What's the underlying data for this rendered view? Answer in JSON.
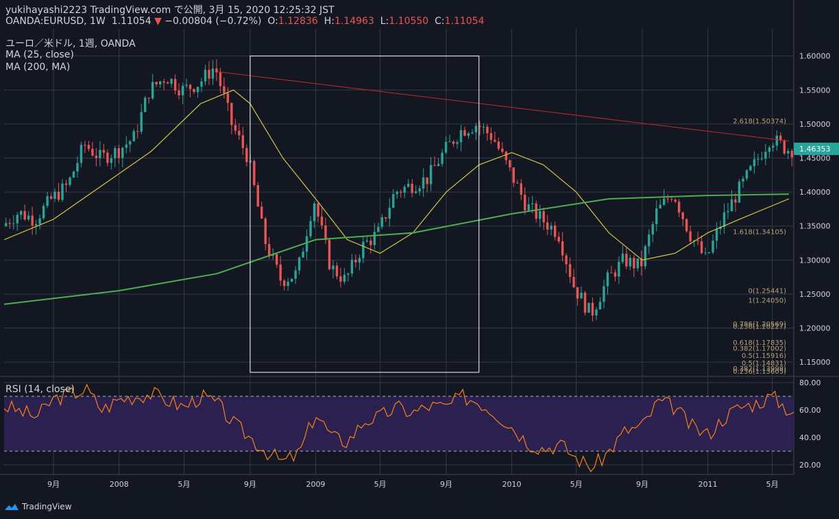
{
  "header": {
    "line1": "yukihayashi2223 TradingView.com で公開, 3月 15, 2020 12:25:32 JST",
    "symbol": "OANDA:EURUSD, 1W",
    "last": "1.11054",
    "arrow": "▼",
    "change": "−0.00804 (−0.72%)",
    "o_label": "O:",
    "o": "1.12836",
    "h_label": "H:",
    "h": "1.14963",
    "l_label": "L:",
    "l": "1.10550",
    "c_label": "C:",
    "c": "1.11054"
  },
  "legend": {
    "title": "ユーロ／米ドル, 1週, OANDA",
    "ma1": "MA (25, close)",
    "ma2": "MA (200, MA)",
    "rsi": "RSI (14, close)"
  },
  "brand": "TradingView",
  "colors": {
    "background": "#131722",
    "up": "#26a69a",
    "down": "#ef5350",
    "ma25": "#d8c83c",
    "ma200": "#4caf50",
    "trendline": "#c62828",
    "rsi_line": "#ff7f0e",
    "rsi_band": "#2a2150",
    "text": "#d1d4dc",
    "fib": "#b8a07a",
    "price_tag": "#26a69a"
  },
  "chart_data": [
    {
      "type": "candlestick",
      "title": "ユーロ／米ドル, 1週, OANDA",
      "y_ticks": [
        "1.60000",
        "1.55000",
        "1.50000",
        "1.45000",
        "1.40000",
        "1.35000",
        "1.30000",
        "1.25000",
        "1.20000",
        "1.15000"
      ],
      "ylim": [
        1.13,
        1.64
      ],
      "x_ticks": [
        "9月",
        "2008",
        "5月",
        "9月",
        "2009",
        "5月",
        "9月",
        "2010",
        "5月",
        "9月",
        "2011",
        "5月"
      ],
      "x_tick_dates": [
        "2007-09",
        "2008-01",
        "2008-05",
        "2008-09",
        "2009-01",
        "2009-05",
        "2009-09",
        "2010-01",
        "2010-05",
        "2010-09",
        "2011-01",
        "2011-05"
      ],
      "last_price_tag": "1.46353",
      "close_path": [
        [
          "2007-06",
          1.35
        ],
        [
          "2007-07",
          1.37
        ],
        [
          "2007-08",
          1.36
        ],
        [
          "2007-09",
          1.39
        ],
        [
          "2007-10",
          1.41
        ],
        [
          "2007-11",
          1.47
        ],
        [
          "2007-12",
          1.45
        ],
        [
          "2008-01",
          1.46
        ],
        [
          "2008-02",
          1.48
        ],
        [
          "2008-03",
          1.55
        ],
        [
          "2008-04",
          1.57
        ],
        [
          "2008-05",
          1.55
        ],
        [
          "2008-06",
          1.56
        ],
        [
          "2008-07",
          1.585
        ],
        [
          "2008-08",
          1.5
        ],
        [
          "2008-09",
          1.45
        ],
        [
          "2008-10",
          1.33
        ],
        [
          "2008-11",
          1.27
        ],
        [
          "2008-12",
          1.28
        ],
        [
          "2009-01",
          1.39
        ],
        [
          "2009-02",
          1.29
        ],
        [
          "2009-03",
          1.27
        ],
        [
          "2009-04",
          1.32
        ],
        [
          "2009-05",
          1.34
        ],
        [
          "2009-06",
          1.4
        ],
        [
          "2009-07",
          1.41
        ],
        [
          "2009-08",
          1.42
        ],
        [
          "2009-09",
          1.46
        ],
        [
          "2009-10",
          1.49
        ],
        [
          "2009-11",
          1.5
        ],
        [
          "2009-12",
          1.48
        ],
        [
          "2010-01",
          1.43
        ],
        [
          "2010-02",
          1.38
        ],
        [
          "2010-03",
          1.36
        ],
        [
          "2010-04",
          1.34
        ],
        [
          "2010-05",
          1.26
        ],
        [
          "2010-06",
          1.22
        ],
        [
          "2010-07",
          1.27
        ],
        [
          "2010-08",
          1.3
        ],
        [
          "2010-09",
          1.29
        ],
        [
          "2010-10",
          1.37
        ],
        [
          "2010-11",
          1.4
        ],
        [
          "2010-12",
          1.34
        ],
        [
          "2011-01",
          1.3
        ],
        [
          "2011-02",
          1.36
        ],
        [
          "2011-03",
          1.4
        ],
        [
          "2011-04",
          1.44
        ],
        [
          "2011-05",
          1.48
        ],
        [
          "2011-06",
          1.463
        ]
      ],
      "series": [
        {
          "name": "MA (25, close)",
          "points": [
            [
              "2007-06",
              1.33
            ],
            [
              "2007-09",
              1.36
            ],
            [
              "2007-12",
              1.41
            ],
            [
              "2008-03",
              1.46
            ],
            [
              "2008-06",
              1.53
            ],
            [
              "2008-08",
              1.55
            ],
            [
              "2008-09",
              1.53
            ],
            [
              "2008-11",
              1.45
            ],
            [
              "2009-01",
              1.39
            ],
            [
              "2009-03",
              1.33
            ],
            [
              "2009-05",
              1.31
            ],
            [
              "2009-07",
              1.34
            ],
            [
              "2009-09",
              1.4
            ],
            [
              "2009-11",
              1.44
            ],
            [
              "2010-01",
              1.458
            ],
            [
              "2010-03",
              1.44
            ],
            [
              "2010-05",
              1.4
            ],
            [
              "2010-07",
              1.34
            ],
            [
              "2010-09",
              1.3
            ],
            [
              "2010-11",
              1.31
            ],
            [
              "2011-01",
              1.34
            ],
            [
              "2011-03",
              1.36
            ],
            [
              "2011-05",
              1.38
            ],
            [
              "2011-06",
              1.39
            ]
          ]
        },
        {
          "name": "MA (200, MA)",
          "points": [
            [
              "2007-06",
              1.235
            ],
            [
              "2008-01",
              1.255
            ],
            [
              "2008-07",
              1.28
            ],
            [
              "2009-01",
              1.33
            ],
            [
              "2009-07",
              1.34
            ],
            [
              "2010-01",
              1.368
            ],
            [
              "2010-07",
              1.39
            ],
            [
              "2011-01",
              1.395
            ],
            [
              "2011-06",
              1.397
            ]
          ]
        }
      ],
      "trendline": [
        [
          "2008-07",
          1.577
        ],
        [
          "2011-06",
          1.475
        ]
      ],
      "fib_labels": [
        {
          "label": "2.618(1.50374)",
          "price": 1.50374
        },
        {
          "label": "1.618(1.34105)",
          "price": 1.34105
        },
        {
          "label": "0(1.25441)",
          "price": 1.25441
        },
        {
          "label": "1(1.24050)",
          "price": 1.2405
        },
        {
          "label": "0.786(1.20569)",
          "price": 1.20569
        },
        {
          "label": "0.236(1.20227)",
          "price": 1.20227
        },
        {
          "label": "0.618(1.17835)",
          "price": 1.17835
        },
        {
          "label": "0.382(1.17002)",
          "price": 1.17002
        },
        {
          "label": "0.5(1.15916)",
          "price": 1.15916
        },
        {
          "label": "0.5(1.14831)",
          "price": 1.14831
        },
        {
          "label": "0.382(1.13998)",
          "price": 1.13998
        },
        {
          "label": "0.236(1.13605)",
          "price": 1.13605
        }
      ],
      "highlight_box": {
        "from": "2008-09",
        "to": "2009-11",
        "price_top": 1.6,
        "price_bottom": 1.135
      }
    },
    {
      "type": "line",
      "title": "RSI (14, close)",
      "y_ticks": [
        "80.00",
        "60.00",
        "40.00",
        "20.00"
      ],
      "ylim": [
        13,
        84
      ],
      "bands": [
        30,
        70
      ],
      "series": [
        {
          "name": "RSI (14, close)",
          "points": [
            [
              "2007-06",
              63
            ],
            [
              "2007-08",
              55
            ],
            [
              "2007-09",
              68
            ],
            [
              "2007-11",
              75
            ],
            [
              "2007-12",
              60
            ],
            [
              "2008-01",
              68
            ],
            [
              "2008-03",
              72
            ],
            [
              "2008-04",
              67
            ],
            [
              "2008-05",
              62
            ],
            [
              "2008-06",
              70
            ],
            [
              "2008-07",
              65
            ],
            [
              "2008-08",
              50
            ],
            [
              "2008-09",
              40
            ],
            [
              "2008-10",
              30
            ],
            [
              "2008-11",
              22
            ],
            [
              "2008-12",
              28
            ],
            [
              "2009-01",
              58
            ],
            [
              "2009-02",
              40
            ],
            [
              "2009-03",
              37
            ],
            [
              "2009-04",
              52
            ],
            [
              "2009-05",
              55
            ],
            [
              "2009-06",
              62
            ],
            [
              "2009-07",
              58
            ],
            [
              "2009-08",
              63
            ],
            [
              "2009-09",
              62
            ],
            [
              "2009-10",
              70
            ],
            [
              "2009-11",
              66
            ],
            [
              "2009-12",
              58
            ],
            [
              "2010-01",
              48
            ],
            [
              "2010-02",
              36
            ],
            [
              "2010-03",
              32
            ],
            [
              "2010-04",
              35
            ],
            [
              "2010-05",
              25
            ],
            [
              "2010-06",
              18
            ],
            [
              "2010-07",
              30
            ],
            [
              "2010-08",
              45
            ],
            [
              "2010-09",
              48
            ],
            [
              "2010-10",
              66
            ],
            [
              "2010-11",
              62
            ],
            [
              "2010-12",
              48
            ],
            [
              "2011-01",
              42
            ],
            [
              "2011-02",
              55
            ],
            [
              "2011-03",
              62
            ],
            [
              "2011-04",
              65
            ],
            [
              "2011-05",
              70
            ],
            [
              "2011-06",
              60
            ]
          ]
        }
      ]
    }
  ]
}
